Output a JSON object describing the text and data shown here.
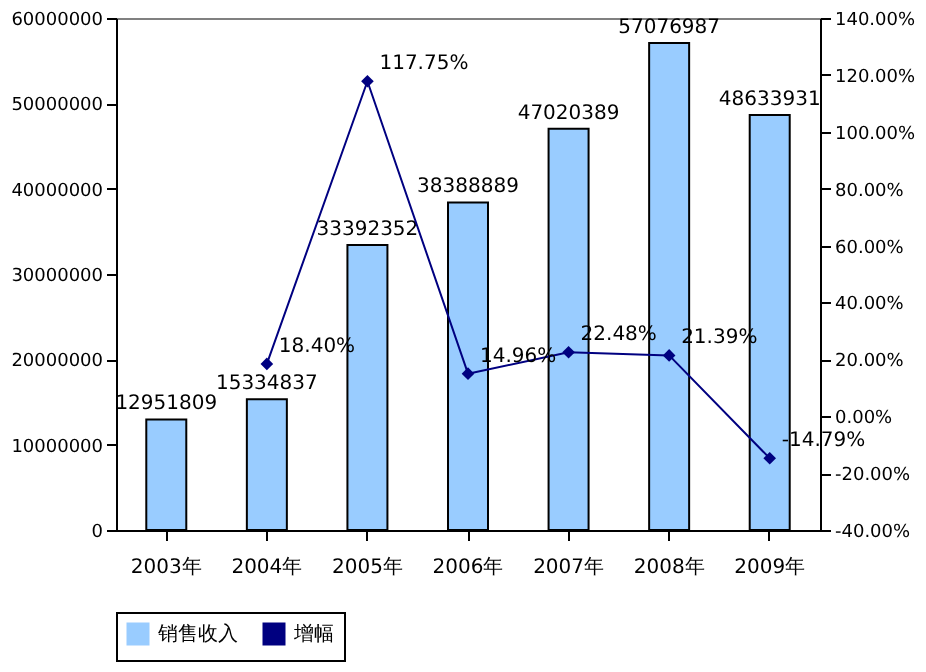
{
  "chart_data": {
    "type": "bar",
    "categories": [
      "2003年",
      "2004年",
      "2005年",
      "2006年",
      "2007年",
      "2008年",
      "2009年"
    ],
    "series": [
      {
        "name": "销售收入",
        "color": "#99ccff",
        "values": [
          12951809,
          15334837,
          33392352,
          38388889,
          47020389,
          57076987,
          48633931
        ]
      },
      {
        "name": "增幅",
        "type": "line",
        "axis": "y2",
        "color": "#000080",
        "marker": "diamond",
        "values": [
          null,
          18.4,
          117.75,
          14.96,
          22.48,
          21.39,
          -14.79
        ],
        "value_labels": [
          null,
          "18.40%",
          "117.75%",
          "14.96%",
          "22.48%",
          "21.39%",
          "-14.79%"
        ]
      }
    ],
    "data_labels": true,
    "ylim": [
      0,
      60000000
    ],
    "yticks": [
      0,
      10000000,
      20000000,
      30000000,
      40000000,
      50000000,
      60000000
    ],
    "y2lim": [
      -40,
      140
    ],
    "y2ticks": [
      {
        "value": -40,
        "label": "-40.00%"
      },
      {
        "value": -20,
        "label": "-20.00%"
      },
      {
        "value": 0,
        "label": "0.00%"
      },
      {
        "value": 20,
        "label": "20.00%"
      },
      {
        "value": 40,
        "label": "40.00%"
      },
      {
        "value": 60,
        "label": "60.00%"
      },
      {
        "value": 80,
        "label": "80.00%"
      },
      {
        "value": 100,
        "label": "100.00%"
      },
      {
        "value": 120,
        "label": "120.00%"
      },
      {
        "value": 140,
        "label": "140.00%"
      }
    ],
    "grid": false,
    "legend": "bottom"
  }
}
